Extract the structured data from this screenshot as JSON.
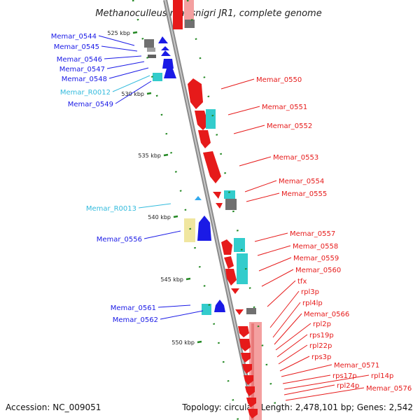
{
  "title": "Methanoculleus marisnigri JR1, complete genome",
  "accession": "Accession: NC_009051",
  "topology": "Topology: circular; Length: 2,478,101 bp; Genes: 2,542",
  "colors": {
    "minus_gene": "#1a1ae6",
    "plus_gene": "#e61a1a",
    "rna": "#33cccc",
    "rna_label": "#33bbdd",
    "pseudo": "#f0e6a0",
    "gray_gene": "#707070",
    "backbone": "#999999",
    "ruler_dots": "#228822"
  },
  "ticks": [
    {
      "label": "525 kbp"
    },
    {
      "label": "530 kbp"
    },
    {
      "label": "535 kbp"
    },
    {
      "label": "540 kbp"
    },
    {
      "label": "545 kbp"
    },
    {
      "label": "550 kbp"
    }
  ],
  "left_labels": [
    {
      "text": "Memar_0544",
      "type": "gene"
    },
    {
      "text": "Memar_0545",
      "type": "gene"
    },
    {
      "text": "Memar_0546",
      "type": "gene"
    },
    {
      "text": "Memar_0547",
      "type": "gene"
    },
    {
      "text": "Memar_0548",
      "type": "gene"
    },
    {
      "text": "Memar_R0012",
      "type": "rna"
    },
    {
      "text": "Memar_0549",
      "type": "gene"
    },
    {
      "text": "Memar_R0013",
      "type": "rna"
    },
    {
      "text": "Memar_0556",
      "type": "gene"
    },
    {
      "text": "Memar_0561",
      "type": "gene"
    },
    {
      "text": "Memar_0562",
      "type": "gene"
    }
  ],
  "right_labels": [
    {
      "text": "Memar_0550"
    },
    {
      "text": "Memar_0551"
    },
    {
      "text": "Memar_0552"
    },
    {
      "text": "Memar_0553"
    },
    {
      "text": "Memar_0554"
    },
    {
      "text": "Memar_0555"
    },
    {
      "text": "Memar_0557"
    },
    {
      "text": "Memar_0558"
    },
    {
      "text": "Memar_0559"
    },
    {
      "text": "Memar_0560"
    },
    {
      "text": "tfx"
    },
    {
      "text": "rpl3p"
    },
    {
      "text": "rpl4lp"
    },
    {
      "text": "Memar_0566"
    },
    {
      "text": "rpl2p"
    },
    {
      "text": "rps19p"
    },
    {
      "text": "rpl22p"
    },
    {
      "text": "rps3p"
    },
    {
      "text": "Memar_0571"
    },
    {
      "text": "rps17p"
    },
    {
      "text": "rpl14p"
    },
    {
      "text": "rpl24p"
    },
    {
      "text": "Memar_0576"
    }
  ]
}
